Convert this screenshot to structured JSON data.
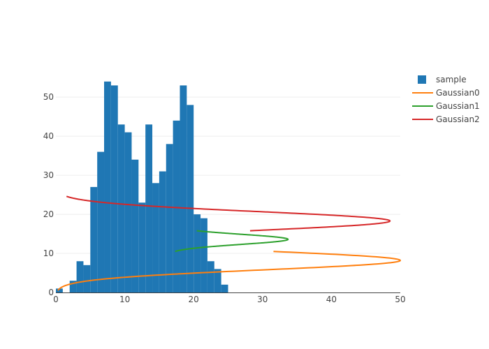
{
  "chart_data": {
    "type": "bar",
    "title": "",
    "xlabel": "",
    "ylabel": "",
    "xlim": [
      0,
      50
    ],
    "ylim": [
      0,
      57
    ],
    "grid": true,
    "legend_position": "top-right",
    "x_ticks": [
      "0",
      "10",
      "20",
      "30",
      "40",
      "50"
    ],
    "y_ticks": [
      "0",
      "10",
      "20",
      "30",
      "40",
      "50"
    ],
    "x_tick_values": [
      0,
      10,
      20,
      30,
      40,
      50
    ],
    "y_tick_values": [
      0,
      10,
      20,
      30,
      40,
      50
    ],
    "histogram": {
      "name": "sample",
      "color": "#1f77b4",
      "bin_start": 0,
      "bin_width": 1,
      "counts": [
        1,
        0,
        3,
        8,
        7,
        27,
        36,
        54,
        53,
        43,
        41,
        34,
        23,
        43,
        28,
        31,
        38,
        44,
        53,
        48,
        20,
        19,
        8,
        6,
        2
      ]
    },
    "series": [
      {
        "name": "Gaussian0",
        "color": "#ff7f0e",
        "mean": 8.2,
        "sigma": 2.4,
        "peak": 50,
        "y_range": [
          0.5,
          10.5
        ]
      },
      {
        "name": "Gaussian1",
        "color": "#2ca02c",
        "mean": 13.6,
        "sigma": 1.3,
        "peak": 17.4,
        "offset": 16.3,
        "y_range": [
          10.5,
          15.8
        ]
      },
      {
        "name": "Gaussian2",
        "color": "#d62728",
        "mean": 18.3,
        "sigma": 2.4,
        "peak": 48.5,
        "y_range": [
          15.8,
          24.6
        ]
      }
    ]
  }
}
